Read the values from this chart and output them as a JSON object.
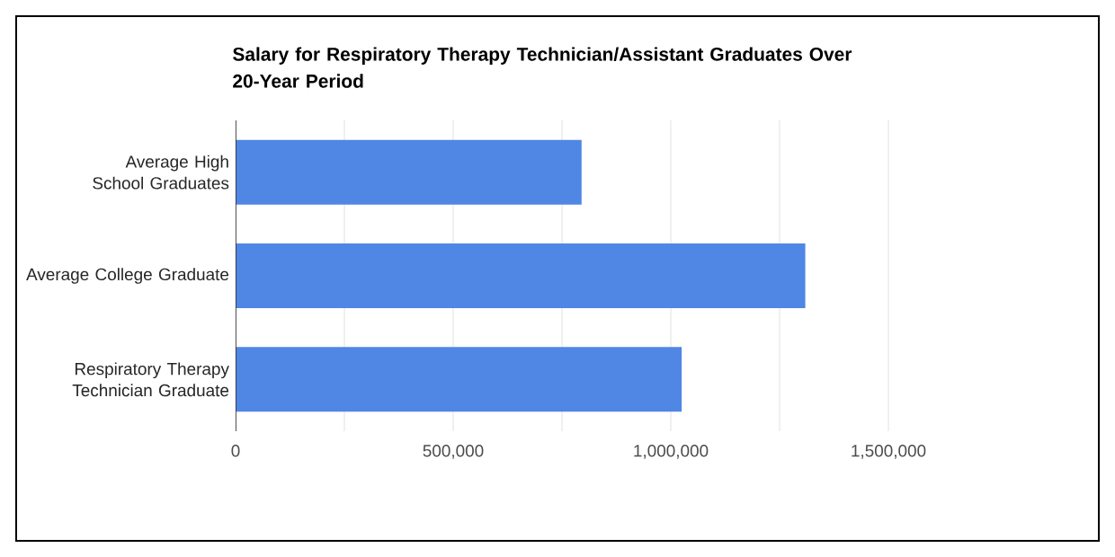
{
  "chart_data": {
    "type": "bar",
    "orientation": "horizontal",
    "title": "Salary for Respiratory Therapy Technician/Assistant Graduates Over 20-Year Period",
    "categories": [
      "Average High School Graduates",
      "Average College Graduate",
      "Respiratory Therapy Technician Graduate"
    ],
    "values": [
      795000,
      1309000,
      1025000
    ],
    "color": "#5086e4",
    "xlim": [
      0,
      1500000
    ],
    "xticks": [
      0,
      {
        "value": 250000,
        "label": null
      },
      {
        "value": 500000,
        "label": "500,000"
      },
      {
        "value": 750000,
        "label": null
      },
      {
        "value": 1000000,
        "label": "1,000,000"
      },
      {
        "value": 1250000,
        "label": null
      },
      {
        "value": 1500000,
        "label": "1,500,000"
      }
    ],
    "grid": "x"
  }
}
